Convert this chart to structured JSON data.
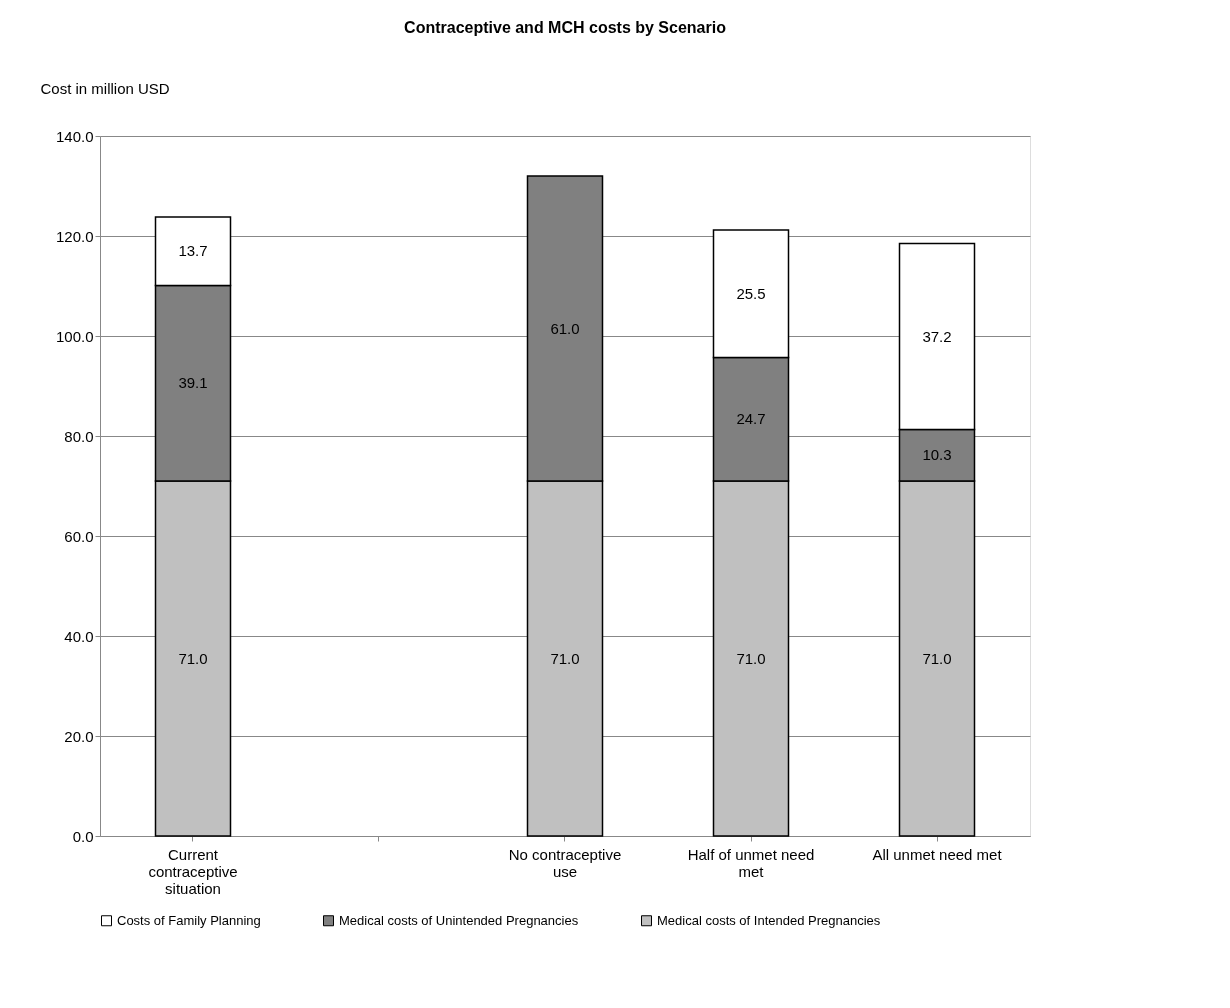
{
  "chart_data": {
    "type": "bar",
    "title": "Contraceptive and MCH costs by Scenario",
    "ylabel": "Cost in million USD",
    "categories": [
      "Current contraceptive situation",
      null,
      "No contraceptive use",
      "Half of unmet need met",
      "All unmet need met"
    ],
    "stacked": true,
    "series": [
      {
        "name": "Medical costs of Intended Pregnancies",
        "color": "#c0c0c0",
        "values": [
          71.0,
          null,
          71.0,
          71.0,
          71.0
        ],
        "value_labels": [
          "71.0",
          null,
          "71.0",
          "71.0",
          "71.0"
        ]
      },
      {
        "name": "Medical costs of Unintended Pregnancies",
        "color": "#808080",
        "values": [
          39.1,
          null,
          61.0,
          24.7,
          10.3
        ],
        "value_labels": [
          "39.1",
          null,
          "61.0",
          "24.7",
          "10.3"
        ]
      },
      {
        "name": "Costs of Family Planning",
        "color": "#ffffff",
        "values": [
          13.7,
          null,
          null,
          25.5,
          37.2
        ],
        "value_labels": [
          "13.7",
          null,
          null,
          "25.5",
          "37.2"
        ]
      }
    ],
    "ylim": [
      0,
      140
    ],
    "yticks": [
      {
        "value": 0,
        "label": "0.0"
      },
      {
        "value": 20,
        "label": "20.0"
      },
      {
        "value": 40,
        "label": "40.0"
      },
      {
        "value": 60,
        "label": "60.0"
      },
      {
        "value": 80,
        "label": "80.0"
      },
      {
        "value": 100,
        "label": "100.0"
      },
      {
        "value": 120,
        "label": "120.0"
      },
      {
        "value": 140,
        "label": "140.0"
      }
    ],
    "grid": "y",
    "legend": "bottom"
  }
}
